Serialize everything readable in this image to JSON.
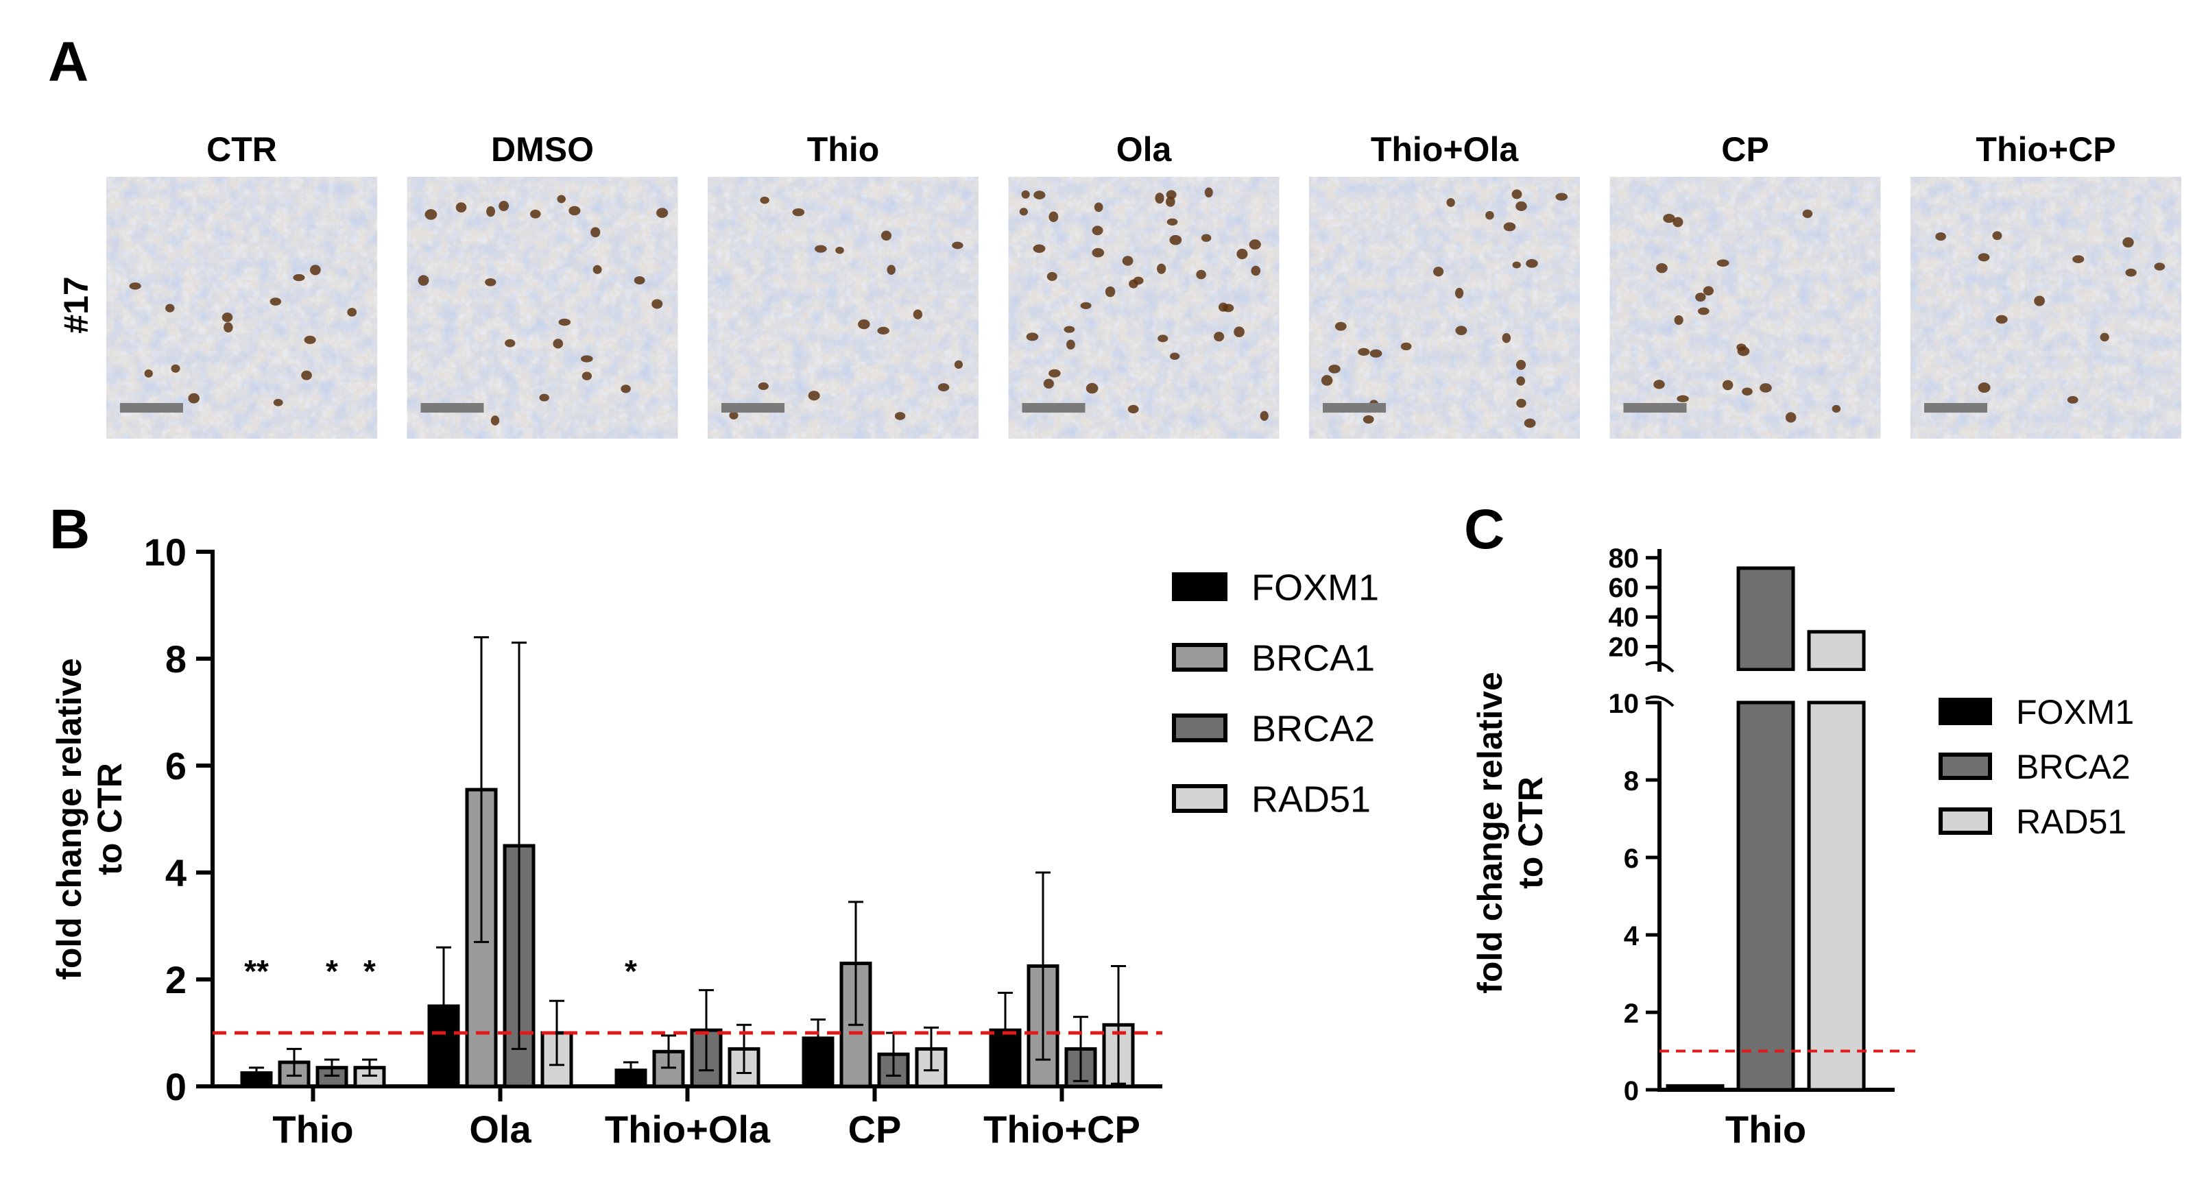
{
  "panel_a": {
    "letter": "A",
    "row_label": "#17",
    "columns": [
      "CTR",
      "DMSO",
      "Thio",
      "Ola",
      "Thio+Ola",
      "CP",
      "Thio+CP"
    ]
  },
  "chart_data": [
    {
      "panel": "B",
      "type": "bar",
      "title": "",
      "xlabel": "",
      "ylabel": "fold change relative to CTR",
      "ylabel_lines": [
        "fold change relative",
        "to CTR"
      ],
      "ylim": [
        0,
        10
      ],
      "yticks": [
        0,
        2,
        4,
        6,
        8,
        10
      ],
      "reference_line": 1,
      "categories": [
        "Thio",
        "Ola",
        "Thio+Ola",
        "CP",
        "Thio+CP"
      ],
      "series": [
        {
          "name": "FOXM1",
          "color": "#000000",
          "values": [
            0.25,
            1.5,
            0.3,
            0.9,
            1.05
          ],
          "errors": [
            0.1,
            1.1,
            0.15,
            0.35,
            0.7
          ]
        },
        {
          "name": "BRCA1",
          "color": "#9b9b9b",
          "values": [
            0.45,
            5.55,
            0.65,
            2.3,
            2.25
          ],
          "errors": [
            0.25,
            2.85,
            0.3,
            1.15,
            1.75
          ]
        },
        {
          "name": "BRCA2",
          "color": "#6f6f6f",
          "values": [
            0.35,
            4.5,
            1.05,
            0.6,
            0.7
          ],
          "errors": [
            0.15,
            3.8,
            0.75,
            0.4,
            0.6
          ]
        },
        {
          "name": "RAD51",
          "color": "#d4d4d4",
          "values": [
            0.35,
            1.0,
            0.7,
            0.7,
            1.15
          ],
          "errors": [
            0.15,
            0.6,
            0.45,
            0.4,
            1.1
          ]
        }
      ],
      "significance": [
        {
          "category": "Thio",
          "series": "FOXM1",
          "label": "**"
        },
        {
          "category": "Thio",
          "series": "BRCA2",
          "label": "*"
        },
        {
          "category": "Thio",
          "series": "RAD51",
          "label": "*"
        },
        {
          "category": "Thio+Ola",
          "series": "FOXM1",
          "label": "*"
        }
      ],
      "legend_position": "right"
    },
    {
      "panel": "C",
      "type": "bar",
      "title": "",
      "xlabel": "",
      "ylabel": "fold change relative to CTR",
      "ylabel_lines": [
        "fold change relative",
        "to CTR"
      ],
      "broken_axis": true,
      "ylim_lower": [
        0,
        10
      ],
      "yticks_lower": [
        0,
        2,
        4,
        6,
        8,
        10
      ],
      "ylim_upper": [
        10,
        85
      ],
      "yticks_upper": [
        20,
        40,
        60,
        80
      ],
      "reference_line": 1,
      "categories": [
        "Thio"
      ],
      "series": [
        {
          "name": "FOXM1",
          "color": "#000000",
          "values": [
            0.1
          ]
        },
        {
          "name": "BRCA2",
          "color": "#6f6f6f",
          "values": [
            73
          ]
        },
        {
          "name": "RAD51",
          "color": "#d4d4d4",
          "values": [
            30
          ]
        }
      ],
      "legend_position": "right"
    }
  ]
}
